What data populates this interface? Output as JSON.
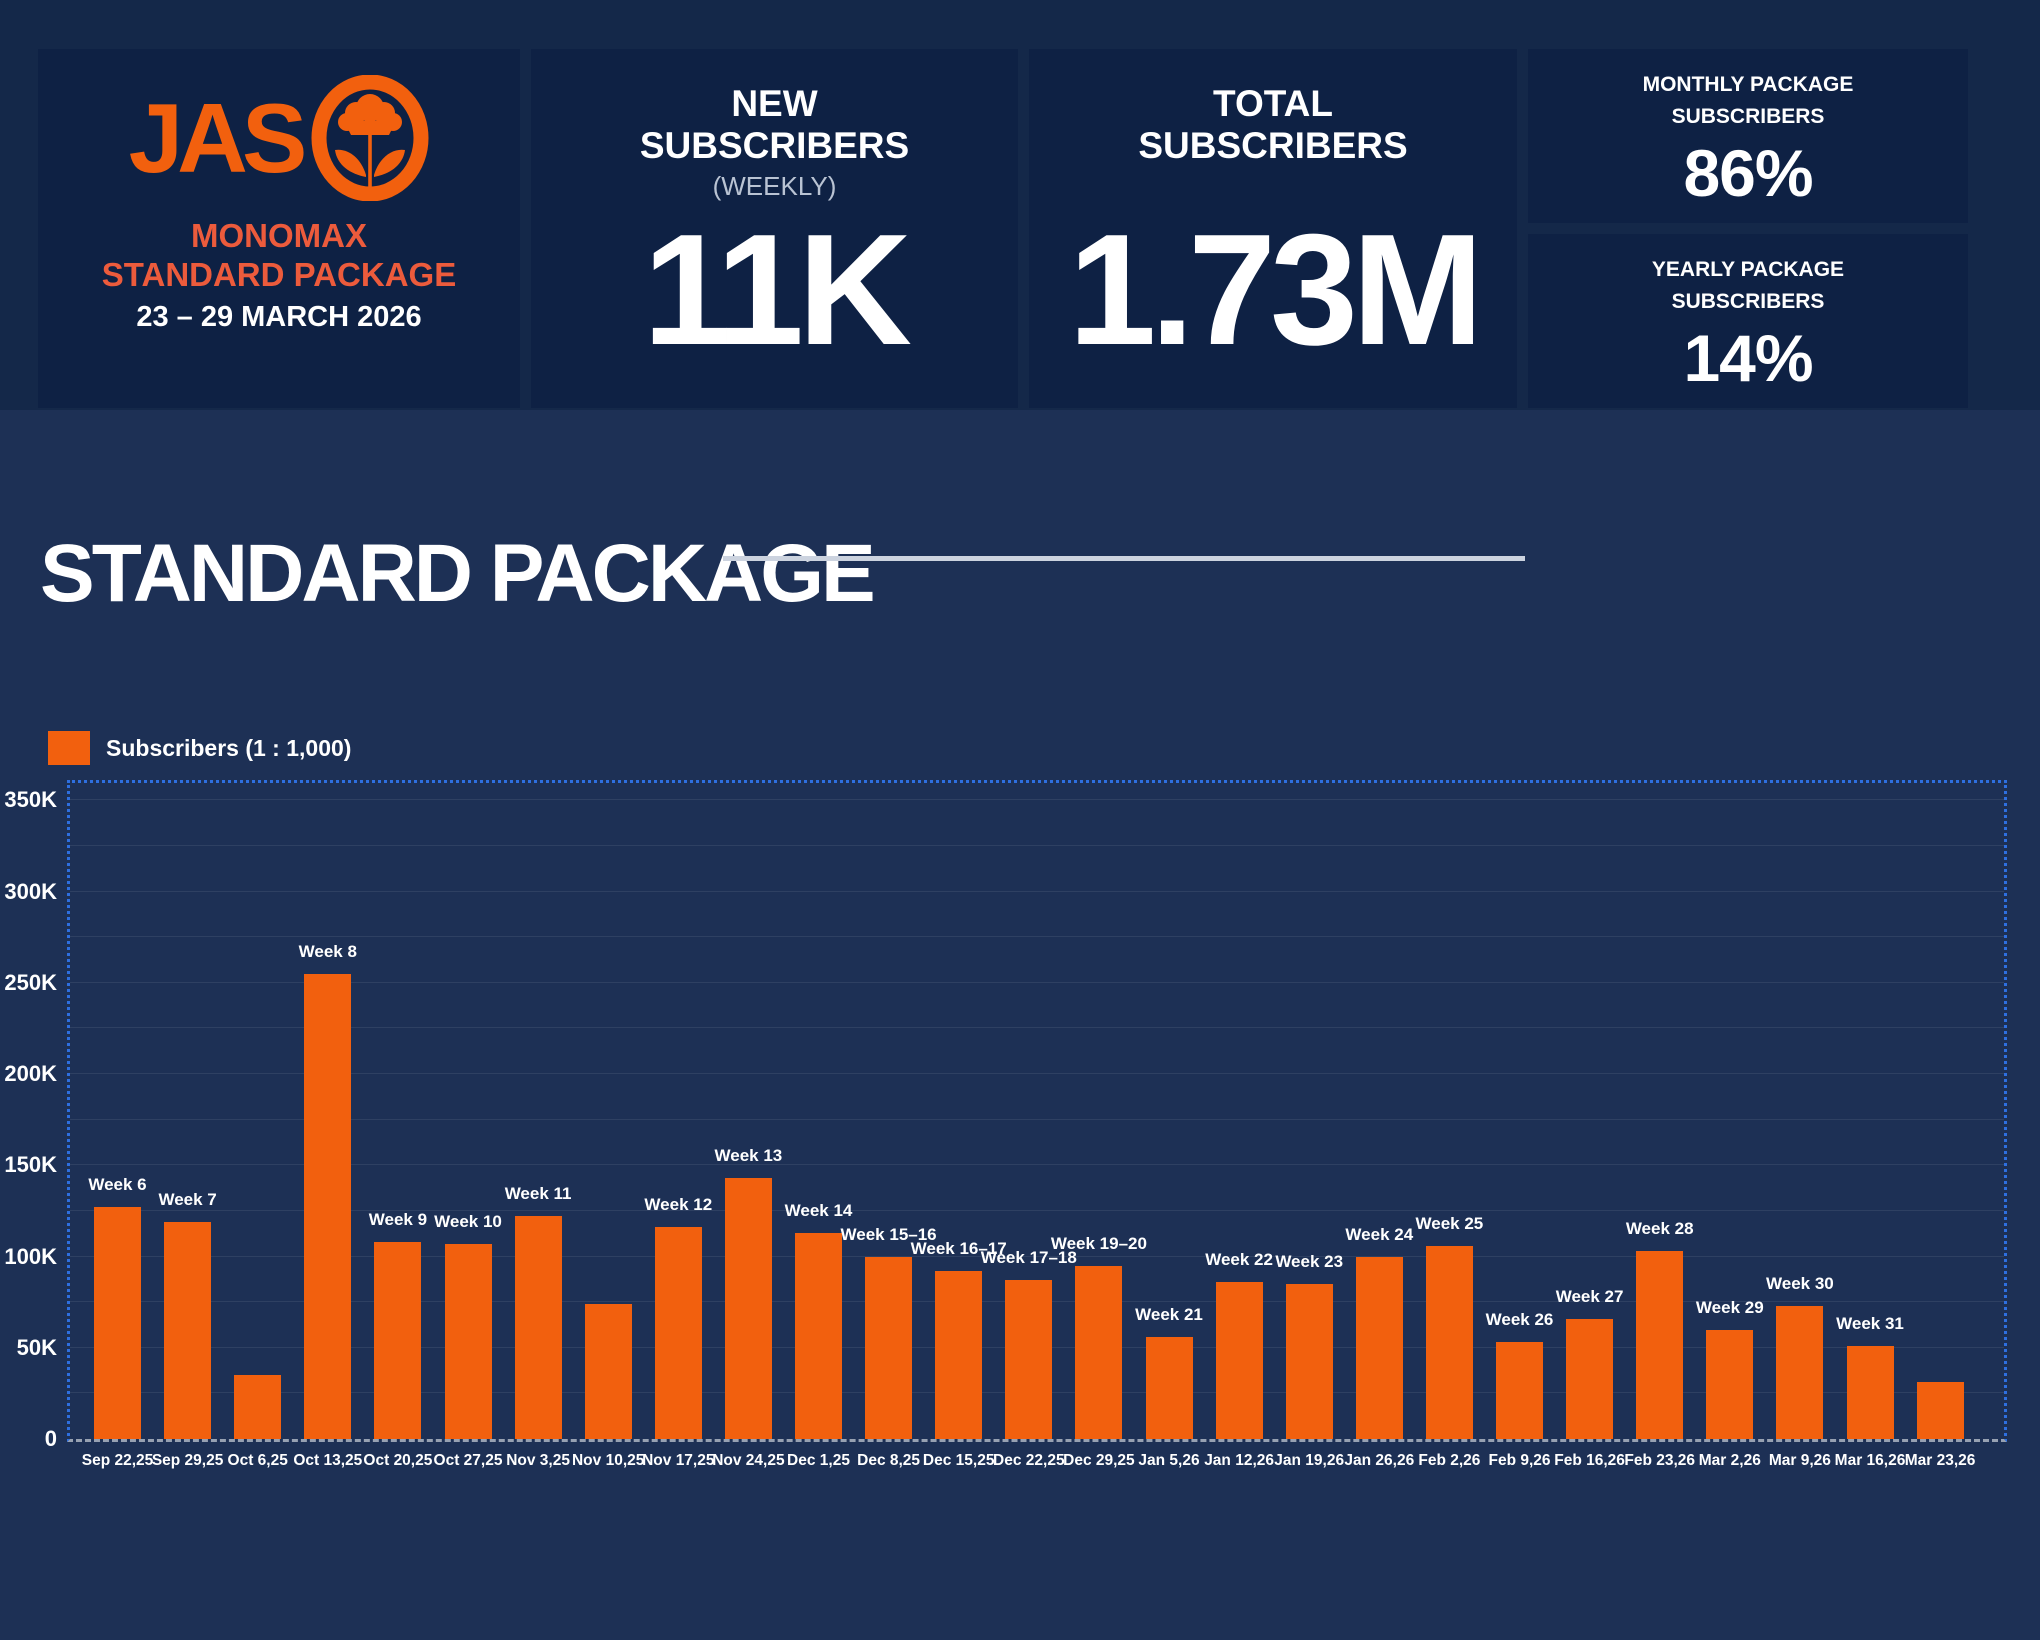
{
  "header": {
    "brand": {
      "name": "JAS",
      "product": "MONOMAX",
      "package": "STANDARD PACKAGE",
      "date_range": "23 – 29 MARCH 2026"
    },
    "new_subscribers": {
      "line1": "NEW",
      "line2": "SUBSCRIBERS",
      "period": "(WEEKLY)",
      "value": "11K"
    },
    "total_subscribers": {
      "line1": "TOTAL",
      "line2": "SUBSCRIBERS",
      "value": "1.73M"
    },
    "monthly_package": {
      "line1": "MONTHLY PACKAGE",
      "line2": "SUBSCRIBERS",
      "value": "86%"
    },
    "yearly_package": {
      "line1": "YEARLY PACKAGE",
      "line2": "SUBSCRIBERS",
      "value": "14%"
    }
  },
  "section": {
    "title": "STANDARD PACKAGE"
  },
  "colors": {
    "accent_orange": "#f2600e",
    "brand_salmon": "#ec5b3c",
    "plot_border_blue": "#2e6fe0",
    "axis_gray": "#97a1b2",
    "page_bg": "#1d3055",
    "header_band_bg": "#142849",
    "card_bg": "#0e2144"
  },
  "chart_data": {
    "type": "bar",
    "title": "STANDARD PACKAGE",
    "legend": [
      "Subscribers (1 : 1,000)"
    ],
    "legend_position": "top-left",
    "grid": true,
    "grid_step": 25000,
    "ylim": [
      0,
      359500
    ],
    "bar_color": "#f2600e",
    "y_ticks": [
      {
        "label": "0",
        "value": 0
      },
      {
        "label": "50K",
        "value": 50000
      },
      {
        "label": "100K",
        "value": 100000
      },
      {
        "label": "150K",
        "value": 150000
      },
      {
        "label": "200K",
        "value": 200000
      },
      {
        "label": "250K",
        "value": 250000
      },
      {
        "label": "300K",
        "value": 300000
      },
      {
        "label": "350K",
        "value": 350000
      }
    ],
    "categories": [
      "Sep 22,25",
      "Sep 29,25",
      "Oct 6,25",
      "Oct 13,25",
      "Oct 20,25",
      "Oct 27,25",
      "Nov 3,25",
      "Nov 10,25",
      "Nov 17,25",
      "Nov 24,25",
      "Dec 1,25",
      "Dec 8,25",
      "Dec 15,25",
      "Dec 22,25",
      "Dec 29,25",
      "Jan 5,26",
      "Jan 12,26",
      "Jan 19,26",
      "Jan 26,26",
      "Feb 2,26",
      "Feb 9,26",
      "Feb 16,26",
      "Feb 23,26",
      "Mar 2,26",
      "Mar 9,26",
      "Mar 16,26",
      "Mar 23,26"
    ],
    "bar_labels": [
      "Week 6",
      "Week 7",
      null,
      "Week 8",
      "Week 9",
      "Week 10",
      "Week 11",
      null,
      "Week 12",
      "Week 13",
      "Week 14",
      "Week 15–16",
      "Week 16–17",
      "Week 17–18",
      "Week 19–20",
      "Week 21",
      "Week 22",
      "Week 23",
      "Week 24",
      "Week 25",
      "Week 26",
      "Week 27",
      "Week 28",
      "Week 29",
      "Week 30",
      "Week 31",
      null
    ],
    "values": [
      127000,
      119000,
      35000,
      255000,
      108000,
      107000,
      122000,
      74000,
      116000,
      143000,
      113000,
      100000,
      92000,
      87000,
      95000,
      56000,
      86000,
      85000,
      100000,
      106000,
      53000,
      66000,
      103000,
      60000,
      73000,
      51000,
      31000
    ]
  }
}
